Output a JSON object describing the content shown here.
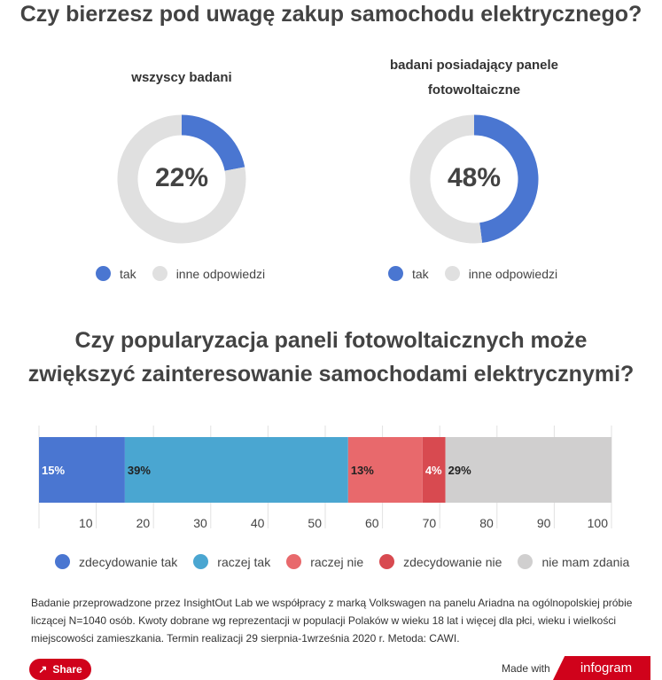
{
  "title1": "Czy bierzesz pod uwagę zakup samochodu elektrycznego?",
  "title2_line1": "Czy popularyzacja paneli fotowoltaicznych może",
  "title2_line2": "zwiększyć zainteresowanie samochodami elektrycznymi?",
  "chart_data": [
    {
      "type": "pie",
      "title": "wszyscy badani",
      "center_label": "22%",
      "categories": [
        "tak",
        "inne odpowiedzi"
      ],
      "values": [
        22,
        78
      ],
      "colors": [
        "#4a76d1",
        "#e0e0e0"
      ]
    },
    {
      "type": "pie",
      "title": "badani posiadający panele fotowoltaiczne",
      "center_label": "48%",
      "categories": [
        "tak",
        "inne odpowiedzi"
      ],
      "values": [
        48,
        52
      ],
      "colors": [
        "#4a76d1",
        "#e0e0e0"
      ]
    },
    {
      "type": "bar",
      "orientation": "horizontal",
      "stacked": true,
      "xlim": [
        0,
        100
      ],
      "ticks": [
        "10",
        "20",
        "30",
        "40",
        "50",
        "60",
        "70",
        "80",
        "90",
        "100"
      ],
      "series": [
        {
          "name": "zdecydowanie tak",
          "value": 15,
          "label": "15%",
          "color": "#4a76d1"
        },
        {
          "name": "raczej tak",
          "value": 39,
          "label": "39%",
          "color": "#4aa6d1"
        },
        {
          "name": "raczej nie",
          "value": 13,
          "label": "13%",
          "color": "#e8696c"
        },
        {
          "name": "zdecydowanie nie",
          "value": 4,
          "label": "4%",
          "color": "#d84a50"
        },
        {
          "name": "nie mam zdania",
          "value": 29,
          "label": "29%",
          "color": "#d0cfcf"
        }
      ]
    }
  ],
  "note": "Badanie przeprowadzone przez InsightOut Lab we współpracy z marką Volkswagen na panelu Ariadna na ogólnopolskiej próbie liczącej N=1040 osób. Kwoty dobrane wg reprezentacji w populacji Polaków w wieku 18 lat i więcej dla płci, wieku i wielkości miejscowości zamieszkania. Termin realizacji 29 sierpnia-1września 2020 r. Metoda: CAWI.",
  "footer": {
    "share": "Share",
    "made_with": "Made with",
    "brand": "infogram"
  }
}
